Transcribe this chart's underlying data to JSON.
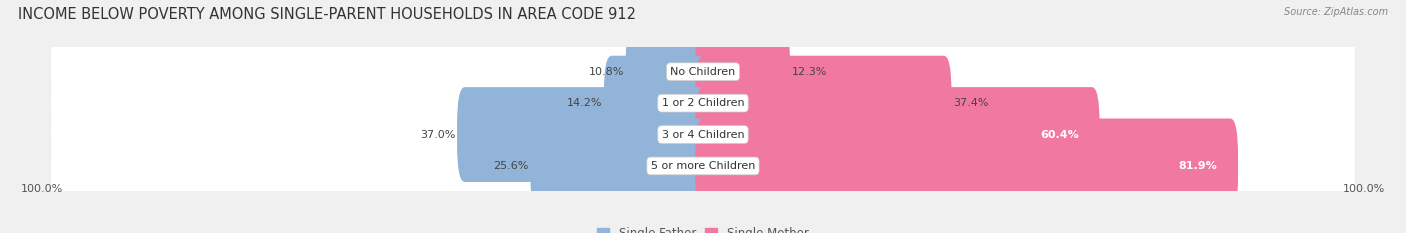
{
  "title": "INCOME BELOW POVERTY AMONG SINGLE-PARENT HOUSEHOLDS IN AREA CODE 912",
  "source": "Source: ZipAtlas.com",
  "categories": [
    "No Children",
    "1 or 2 Children",
    "3 or 4 Children",
    "5 or more Children"
  ],
  "single_father": [
    10.8,
    14.2,
    37.0,
    25.6
  ],
  "single_mother": [
    12.3,
    37.4,
    60.4,
    81.9
  ],
  "father_color": "#92b4d8",
  "mother_color": "#f178a0",
  "bg_color": "#f0f0f0",
  "row_bg_color": "#ffffff",
  "row_border_color": "#d0d0d0",
  "max_val": 100.0,
  "title_fontsize": 10.5,
  "label_fontsize": 8.0,
  "value_fontsize": 8.0,
  "axis_label_fontsize": 8,
  "legend_fontsize": 8.5
}
